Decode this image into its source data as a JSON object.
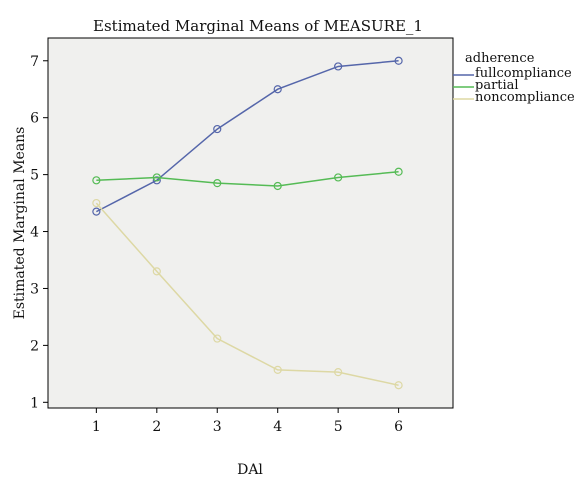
{
  "chart_data": {
    "type": "line",
    "title": "Estimated Marginal Means of MEASURE_1",
    "xlabel": "DAl",
    "ylabel": "Estimated Marginal Means",
    "x": [
      1,
      2,
      3,
      4,
      5,
      6
    ],
    "xlim": [
      0.2,
      6.9
    ],
    "ylim": [
      0.9,
      7.4
    ],
    "yticks": [
      1,
      2,
      3,
      4,
      5,
      6,
      7
    ],
    "legend_title": "adherence",
    "legend_position": "right",
    "plot_background": "#f0f0ee",
    "series": [
      {
        "name": "fullcompliance",
        "color": "#5566aa",
        "values": [
          4.35,
          4.9,
          5.8,
          6.5,
          6.9,
          7.0
        ]
      },
      {
        "name": "partial",
        "color": "#55bb55",
        "values": [
          4.9,
          4.95,
          4.85,
          4.8,
          4.95,
          5.05
        ]
      },
      {
        "name": "noncompliance",
        "color": "#ddd8a4",
        "values": [
          4.5,
          3.3,
          2.12,
          1.57,
          1.53,
          1.3
        ]
      }
    ]
  }
}
